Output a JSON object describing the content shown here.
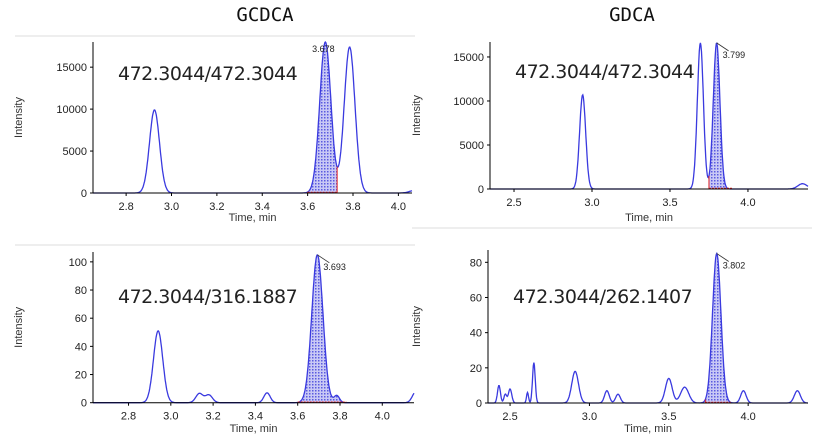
{
  "titles": {
    "left": "GCDCA",
    "right": "GDCA"
  },
  "colors": {
    "trace": "#3a3adf",
    "fill": "#7a7ae8",
    "integration_baseline": "#e02020",
    "axis": "#000000"
  },
  "chart_data": [
    {
      "type": "line",
      "panel": "top-left",
      "annotation": "472.3044/472.3044",
      "xlabel": "Time, min",
      "ylabel": "Intensity",
      "xlim": [
        2.654,
        4.06
      ],
      "ylim": [
        0,
        18000
      ],
      "xticks": [
        2.8,
        3.0,
        3.2,
        3.4,
        3.6,
        3.8,
        4.0
      ],
      "yticks": [
        0,
        5000,
        10000,
        15000
      ],
      "peaks": [
        {
          "rt": 2.925,
          "height": 9900,
          "fwhm": 0.052
        },
        {
          "rt": 3.678,
          "height": 18000,
          "fwhm": 0.058
        },
        {
          "rt": 3.785,
          "height": 17400,
          "fwhm": 0.056
        },
        {
          "rt": 4.07,
          "height": 300,
          "fwhm": 0.05
        }
      ],
      "integration": [
        3.6,
        3.73
      ],
      "apex_label": "3.678",
      "apex_rt": 3.678
    },
    {
      "type": "line",
      "panel": "top-right",
      "annotation": "472.3044/472.3044",
      "xlabel": "Time, min",
      "ylabel": "Intensity",
      "xlim": [
        2.346,
        4.385
      ],
      "ylim": [
        0,
        16700
      ],
      "xticks": [
        2.5,
        3.0,
        3.5,
        4.0
      ],
      "yticks": [
        0,
        5000,
        10000,
        15000
      ],
      "peaks": [
        {
          "rt": 2.94,
          "height": 10700,
          "fwhm": 0.046
        },
        {
          "rt": 3.695,
          "height": 16600,
          "fwhm": 0.046
        },
        {
          "rt": 3.799,
          "height": 16600,
          "fwhm": 0.05
        },
        {
          "rt": 4.35,
          "height": 600,
          "fwhm": 0.07
        }
      ],
      "integration": [
        3.75,
        3.9
      ],
      "apex_label": "3.799",
      "apex_rt": 3.799
    },
    {
      "type": "line",
      "panel": "bottom-left",
      "annotation": "472.3044/316.1887",
      "xlabel": "Time, min",
      "ylabel": "Intensity",
      "xlim": [
        2.632,
        4.15
      ],
      "ylim": [
        0,
        107
      ],
      "xticks": [
        2.8,
        3.0,
        3.2,
        3.4,
        3.6,
        3.8,
        4.0
      ],
      "yticks": [
        0,
        20,
        40,
        60,
        80,
        100
      ],
      "peaks": [
        {
          "rt": 2.94,
          "height": 51,
          "fwhm": 0.052
        },
        {
          "rt": 3.135,
          "height": 6.5,
          "fwhm": 0.04
        },
        {
          "rt": 3.18,
          "height": 5.5,
          "fwhm": 0.04
        },
        {
          "rt": 3.455,
          "height": 7,
          "fwhm": 0.035
        },
        {
          "rt": 3.693,
          "height": 105,
          "fwhm": 0.062
        },
        {
          "rt": 3.785,
          "height": 5,
          "fwhm": 0.03
        },
        {
          "rt": 4.16,
          "height": 8,
          "fwhm": 0.04
        }
      ],
      "integration": [
        3.6,
        3.83
      ],
      "apex_label": "3.693",
      "apex_rt": 3.693
    },
    {
      "type": "line",
      "panel": "bottom-right",
      "annotation": "472.3044/262.1407",
      "xlabel": "Time, min",
      "ylabel": "Intensity",
      "xlim": [
        2.361,
        4.377
      ],
      "ylim": [
        0,
        87
      ],
      "xticks": [
        2.5,
        3.0,
        3.5,
        4.0
      ],
      "yticks": [
        0,
        20,
        40,
        60,
        80
      ],
      "peaks": [
        {
          "rt": 2.43,
          "height": 10,
          "fwhm": 0.022
        },
        {
          "rt": 2.47,
          "height": 5,
          "fwhm": 0.02
        },
        {
          "rt": 2.5,
          "height": 8,
          "fwhm": 0.025
        },
        {
          "rt": 2.61,
          "height": 6,
          "fwhm": 0.015
        },
        {
          "rt": 2.65,
          "height": 23,
          "fwhm": 0.02
        },
        {
          "rt": 2.91,
          "height": 18,
          "fwhm": 0.05
        },
        {
          "rt": 3.11,
          "height": 7,
          "fwhm": 0.035
        },
        {
          "rt": 3.18,
          "height": 5,
          "fwhm": 0.035
        },
        {
          "rt": 3.5,
          "height": 14,
          "fwhm": 0.05
        },
        {
          "rt": 3.6,
          "height": 9,
          "fwhm": 0.06
        },
        {
          "rt": 3.802,
          "height": 85,
          "fwhm": 0.062
        },
        {
          "rt": 3.97,
          "height": 7,
          "fwhm": 0.04
        },
        {
          "rt": 4.31,
          "height": 7,
          "fwhm": 0.045
        }
      ],
      "integration": [
        3.73,
        3.89
      ],
      "apex_label": "3.802",
      "apex_rt": 3.802
    }
  ]
}
